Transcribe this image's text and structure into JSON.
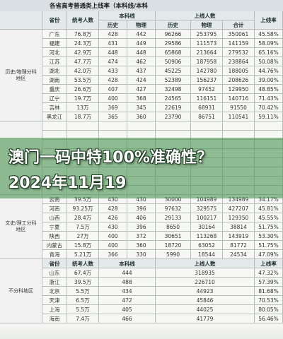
{
  "title": "各省高考普通类上线率（本科线/本科",
  "header": {
    "row1": [
      "省份",
      "统考人数",
      "本科线",
      "上线人数",
      "上线率"
    ],
    "row2": [
      "历史",
      "物理",
      "历史",
      "物理",
      "合计"
    ]
  },
  "groups": [
    {
      "label": "历史/物理分科地区",
      "rows": [
        [
          "广东",
          "76.8万",
          "428",
          "442",
          "96266",
          "253795",
          "350061",
          "45.58%"
        ],
        [
          "福建",
          "24.3万",
          "431",
          "449",
          "29586",
          "111573",
          "141159",
          "58.09%"
        ],
        [
          "河北",
          "42.9万",
          "448",
          "448",
          "65868",
          "213664",
          "279532",
          "65.16%"
        ],
        [
          "江苏",
          "47.7万",
          "474",
          "462",
          "50906",
          "187958",
          "238864",
          "50.08%"
        ],
        [
          "湖北",
          "42.0万",
          "433",
          "437",
          "45225",
          "142780",
          "188005",
          "44.76%"
        ],
        [
          "湖南",
          "53.5万",
          "428",
          "424",
          "52389",
          "156237",
          "208626",
          "39.00%"
        ],
        [
          "重庆",
          "26.6万",
          "407",
          "427",
          "32498",
          "97452",
          "129950",
          "48.85%"
        ],
        [
          "辽宁",
          "19.7万",
          "400",
          "368",
          "24565",
          "116151",
          "140716",
          "71.43%"
        ],
        [
          "吉林",
          "13万",
          "369",
          "345",
          "22619",
          "68931",
          "91550",
          "70.42%"
        ],
        [
          "黑龙江",
          "18.7万",
          "365",
          "360",
          "23790",
          "86751",
          "110541",
          "59.11%"
        ]
      ]
    },
    {
      "label": "文史/理工分科地区",
      "rows": [
        [
          "云南",
          "39.5万",
          "430",
          "430",
          "30000",
          "104989",
          "134989",
          "34.17%"
        ],
        [
          "河南",
          "93.25万",
          "428",
          "396",
          "97632",
          "329575",
          "427207",
          "45.81%"
        ],
        [
          "山西",
          "28.4万",
          "426",
          "406",
          "29133",
          "100217",
          "129350",
          "45.55%"
        ],
        [
          "宁夏",
          "7.5万",
          "430",
          "396",
          "8650",
          "30164",
          "38814",
          "51.75%"
        ],
        [
          "陕西",
          "27万",
          "400",
          "372",
          "30651",
          "113268",
          "143919",
          "53.30%"
        ],
        [
          "内蒙古",
          "15.8万",
          "400",
          "360",
          "18720",
          "63052",
          "81772",
          "51.75%"
        ],
        [
          "青海",
          "5.21万",
          "366",
          "330",
          "5990",
          "18544",
          "24534",
          "47.09%"
        ]
      ]
    }
  ],
  "group3": {
    "label": "不分科地区",
    "header": [
      "省份",
      "统考人数",
      "本科线",
      "上线人数",
      "上线率"
    ],
    "rows": [
      [
        "山东",
        "67.4万",
        "444",
        "318935",
        "47.32%"
      ],
      [
        "浙江",
        "39.5万",
        "488",
        "226710",
        "57.39%"
      ],
      [
        "北京",
        "5.5万",
        "434",
        "44923",
        "81.68%"
      ],
      [
        "天津",
        "6.5万",
        "472",
        "45846",
        "70.53%"
      ],
      [
        "上海",
        "5.5万",
        "405",
        "44025",
        "80.05%"
      ],
      [
        "海南",
        "7.4万",
        "466",
        "41779",
        "56.46%"
      ]
    ]
  },
  "overlay": [
    "澳门一码中特100%准确性？",
    "2024年11月19"
  ]
}
